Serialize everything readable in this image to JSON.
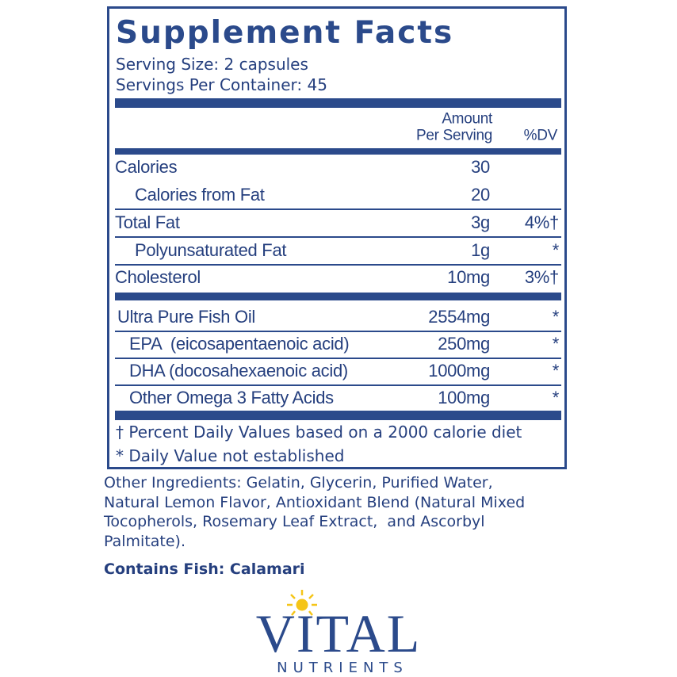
{
  "title": "Supplement Facts",
  "serving_size": "Serving Size: 2 capsules",
  "servings_per_container": "Servings Per Container: 45",
  "header": {
    "amount": "Amount",
    "per_serving": "Per Serving",
    "dv": "%DV"
  },
  "nutrients": [
    {
      "name": "Calories",
      "amount": "30"
    },
    {
      "name": "Calories from Fat",
      "amount": "20"
    },
    {
      "name": "Total Fat",
      "amount": "3g",
      "dv": "4%†"
    },
    {
      "name": "Polyunsaturated Fat",
      "amount": "1g",
      "dv": "*"
    },
    {
      "name": "Cholesterol",
      "amount": "10mg",
      "dv": "3%†"
    }
  ],
  "ingredients": [
    {
      "name": "Ultra Pure Fish Oil",
      "amount": "2554mg",
      "dv": "*"
    },
    {
      "name": "EPA  (eicosapentaenoic acid)",
      "amount": "250mg",
      "dv": "*"
    },
    {
      "name": "DHA (docosahexaenoic acid)",
      "amount": "1000mg",
      "dv": "*"
    },
    {
      "name": "Other Omega 3 Fatty Acids",
      "amount": "100mg",
      "dv": "*"
    }
  ],
  "footnotes": [
    "† Percent Daily Values based on a 2000 calorie diet",
    "* Daily Value not established"
  ],
  "other_ingredients": [
    "Other Ingredients: Gelatin, Glycerin, Purified Water,",
    "Natural Lemon Flavor, Antioxidant Blend (Natural Mixed",
    "Tocopherols, Rosemary Leaf Extract,  and Ascorbyl",
    "Palmitate)."
  ],
  "contains": "Contains Fish: Calamari",
  "brand": {
    "name": "VITAL",
    "tagline": "NUTRIENTS"
  }
}
